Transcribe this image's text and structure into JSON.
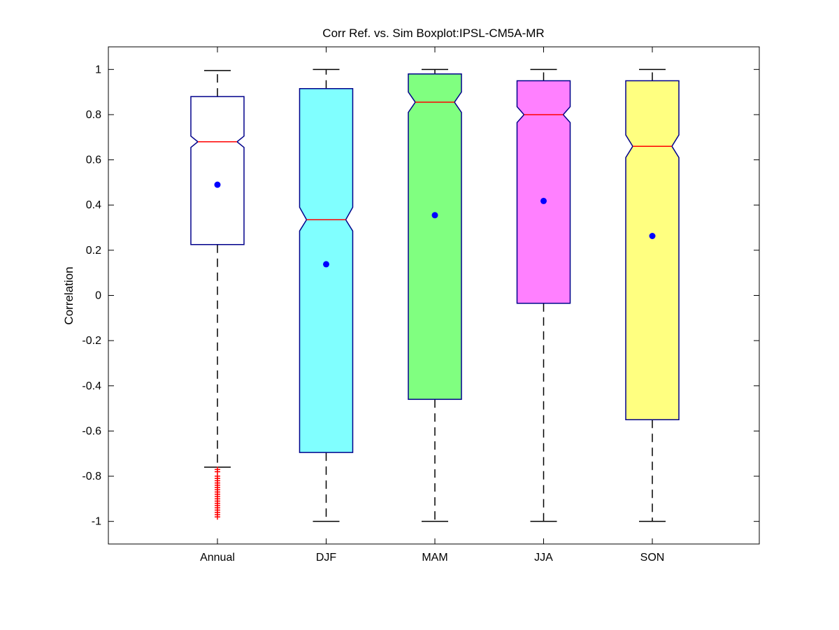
{
  "chart_data": {
    "type": "boxplot",
    "title": "Corr Ref. vs. Sim Boxplot:IPSL-CM5A-MR",
    "xlabel": "",
    "ylabel": "Correlation",
    "ylim": [
      -1.1,
      1.1
    ],
    "yticks": [
      1,
      0.8,
      0.6,
      0.4,
      0.2,
      0,
      -0.2,
      -0.4,
      -0.6,
      -0.8,
      -1
    ],
    "ytick_labels": [
      "1",
      "0.8",
      "0.6",
      "0.4",
      "0.2",
      "0",
      "-0.2",
      "-0.4",
      "-0.6",
      "-0.8",
      "-1"
    ],
    "categories": [
      "Annual",
      "DJF",
      "MAM",
      "JJA",
      "SON"
    ],
    "grid": false,
    "notched": true,
    "box_edge_color": "#00008b",
    "median_color": "#ff0000",
    "mean_marker_color": "#0000ff",
    "outlier_color": "#ff0000",
    "boxes": [
      {
        "category": "Annual",
        "fill": "#ffffff",
        "q1": 0.225,
        "median": 0.68,
        "q3": 0.88,
        "notch_low": 0.655,
        "notch_high": 0.705,
        "whisker_low": -0.76,
        "whisker_high": 0.995,
        "mean": 0.49,
        "outliers": [
          -0.77,
          -0.78,
          -0.8,
          -0.81,
          -0.82,
          -0.83,
          -0.84,
          -0.85,
          -0.86,
          -0.87,
          -0.88,
          -0.89,
          -0.9,
          -0.91,
          -0.92,
          -0.93,
          -0.94,
          -0.95,
          -0.96,
          -0.97,
          -0.98
        ]
      },
      {
        "category": "DJF",
        "fill": "#80ffff",
        "q1": -0.695,
        "median": 0.335,
        "q3": 0.915,
        "notch_low": 0.285,
        "notch_high": 0.39,
        "whisker_low": -1.0,
        "whisker_high": 1.0,
        "mean": 0.138,
        "outliers": []
      },
      {
        "category": "MAM",
        "fill": "#80ff80",
        "q1": -0.46,
        "median": 0.855,
        "q3": 0.98,
        "notch_low": 0.81,
        "notch_high": 0.9,
        "whisker_low": -1.0,
        "whisker_high": 1.0,
        "mean": 0.355,
        "outliers": []
      },
      {
        "category": "JJA",
        "fill": "#ff80ff",
        "q1": -0.035,
        "median": 0.8,
        "q3": 0.95,
        "notch_low": 0.765,
        "notch_high": 0.835,
        "whisker_low": -1.0,
        "whisker_high": 1.0,
        "mean": 0.418,
        "outliers": []
      },
      {
        "category": "SON",
        "fill": "#ffff80",
        "q1": -0.55,
        "median": 0.66,
        "q3": 0.95,
        "notch_low": 0.61,
        "notch_high": 0.71,
        "whisker_low": -1.0,
        "whisker_high": 1.0,
        "mean": 0.263,
        "outliers": []
      }
    ]
  }
}
